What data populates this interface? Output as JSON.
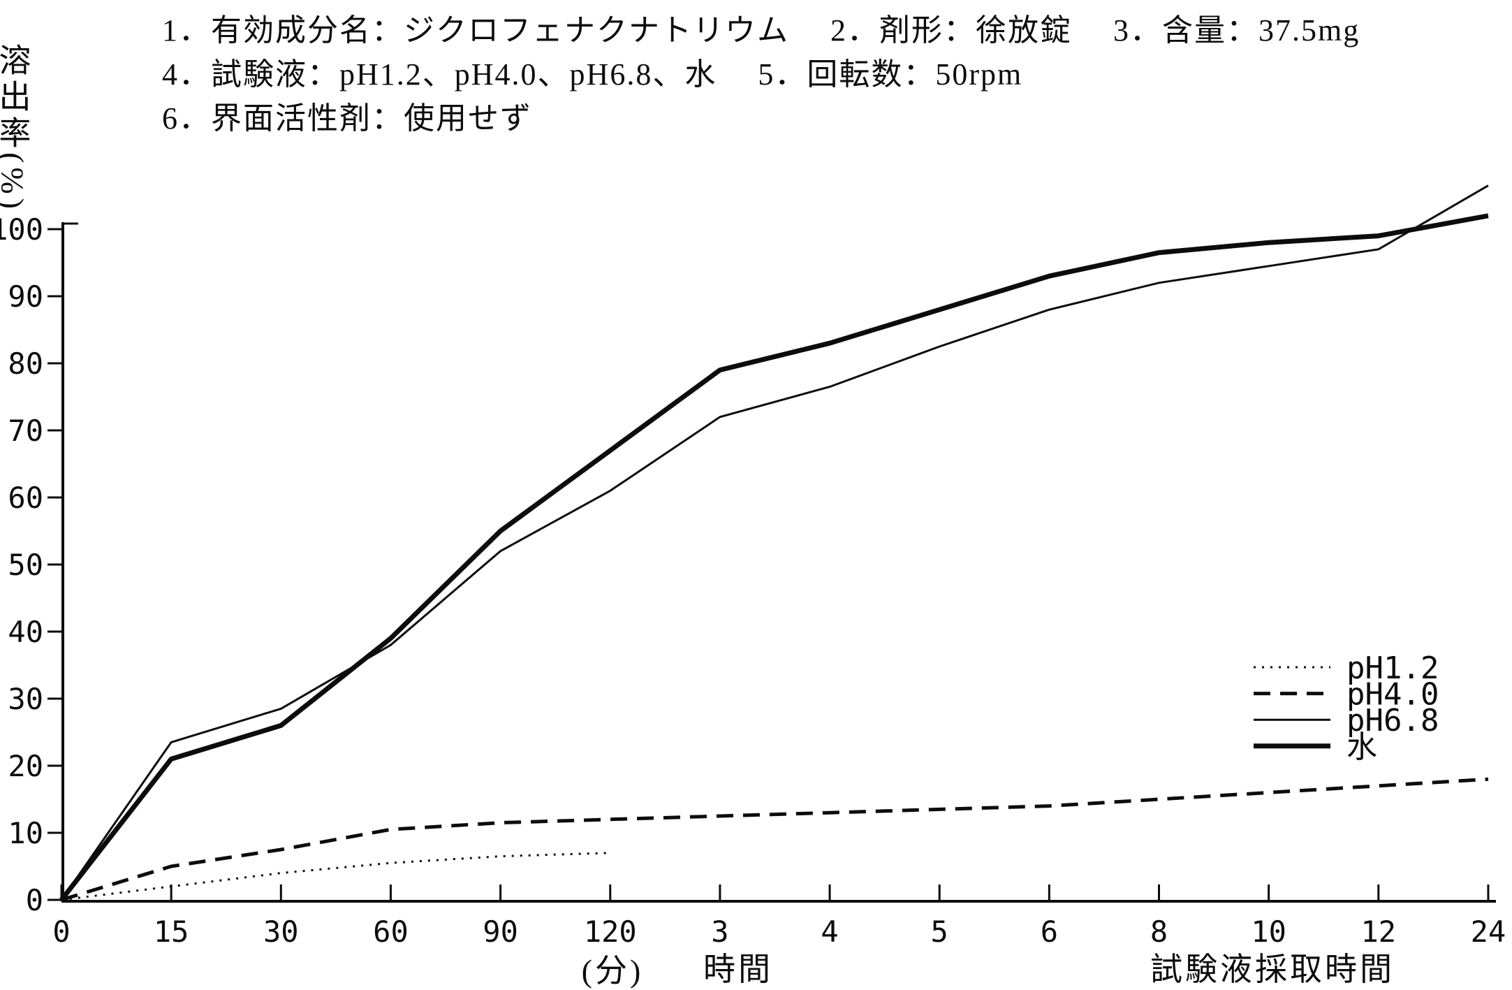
{
  "header": {
    "line1": "1．有効成分名：ジクロフェナクナトリウム　 2．剤形：徐放錠　 3．含量：37.5mg",
    "line2": "4．試験液：pH1.2、pH4.0、pH6.8、水　 5．回転数：50rpm",
    "line3": "6．界面活性剤：使用せず"
  },
  "chart_data": {
    "type": "line",
    "title": "",
    "ylabel": "溶出率(%)",
    "xlabel_minutes_unit": "(分)",
    "xlabel_hours_label": "時間",
    "xlabel_right_label": "試験液採取時間",
    "x_axis_note": "first six ticks are minutes (0-120), remaining ticks are hours (3-24)",
    "categories": [
      "0",
      "15",
      "30",
      "60",
      "90",
      "120",
      "3",
      "4",
      "5",
      "6",
      "8",
      "10",
      "12",
      "24"
    ],
    "yticks": [
      0,
      10,
      20,
      30,
      40,
      50,
      60,
      70,
      80,
      90,
      100
    ],
    "ylim": [
      0,
      100
    ],
    "grid": false,
    "legend_position": "inside-right-bottom",
    "series": [
      {
        "name": "pH1.2",
        "style": "dotted",
        "values": [
          0,
          2,
          4,
          5.5,
          6.5,
          7
        ],
        "ends_at_category": "120"
      },
      {
        "name": "pH4.0",
        "style": "dashed",
        "values": [
          0,
          5,
          7.5,
          10.5,
          11.5,
          12,
          12.5,
          13,
          13.5,
          14,
          15,
          16,
          17,
          18
        ]
      },
      {
        "name": "pH6.8",
        "style": "solid-thin",
        "values": [
          0,
          23.5,
          28.5,
          38,
          52,
          61,
          72,
          76.5,
          82.5,
          88,
          92,
          94.5,
          97,
          106.5
        ]
      },
      {
        "name": "水",
        "style": "solid-thick",
        "values": [
          0,
          21,
          26,
          39,
          55,
          67,
          79,
          83,
          88,
          93,
          96.5,
          98,
          99,
          102
        ]
      }
    ]
  }
}
